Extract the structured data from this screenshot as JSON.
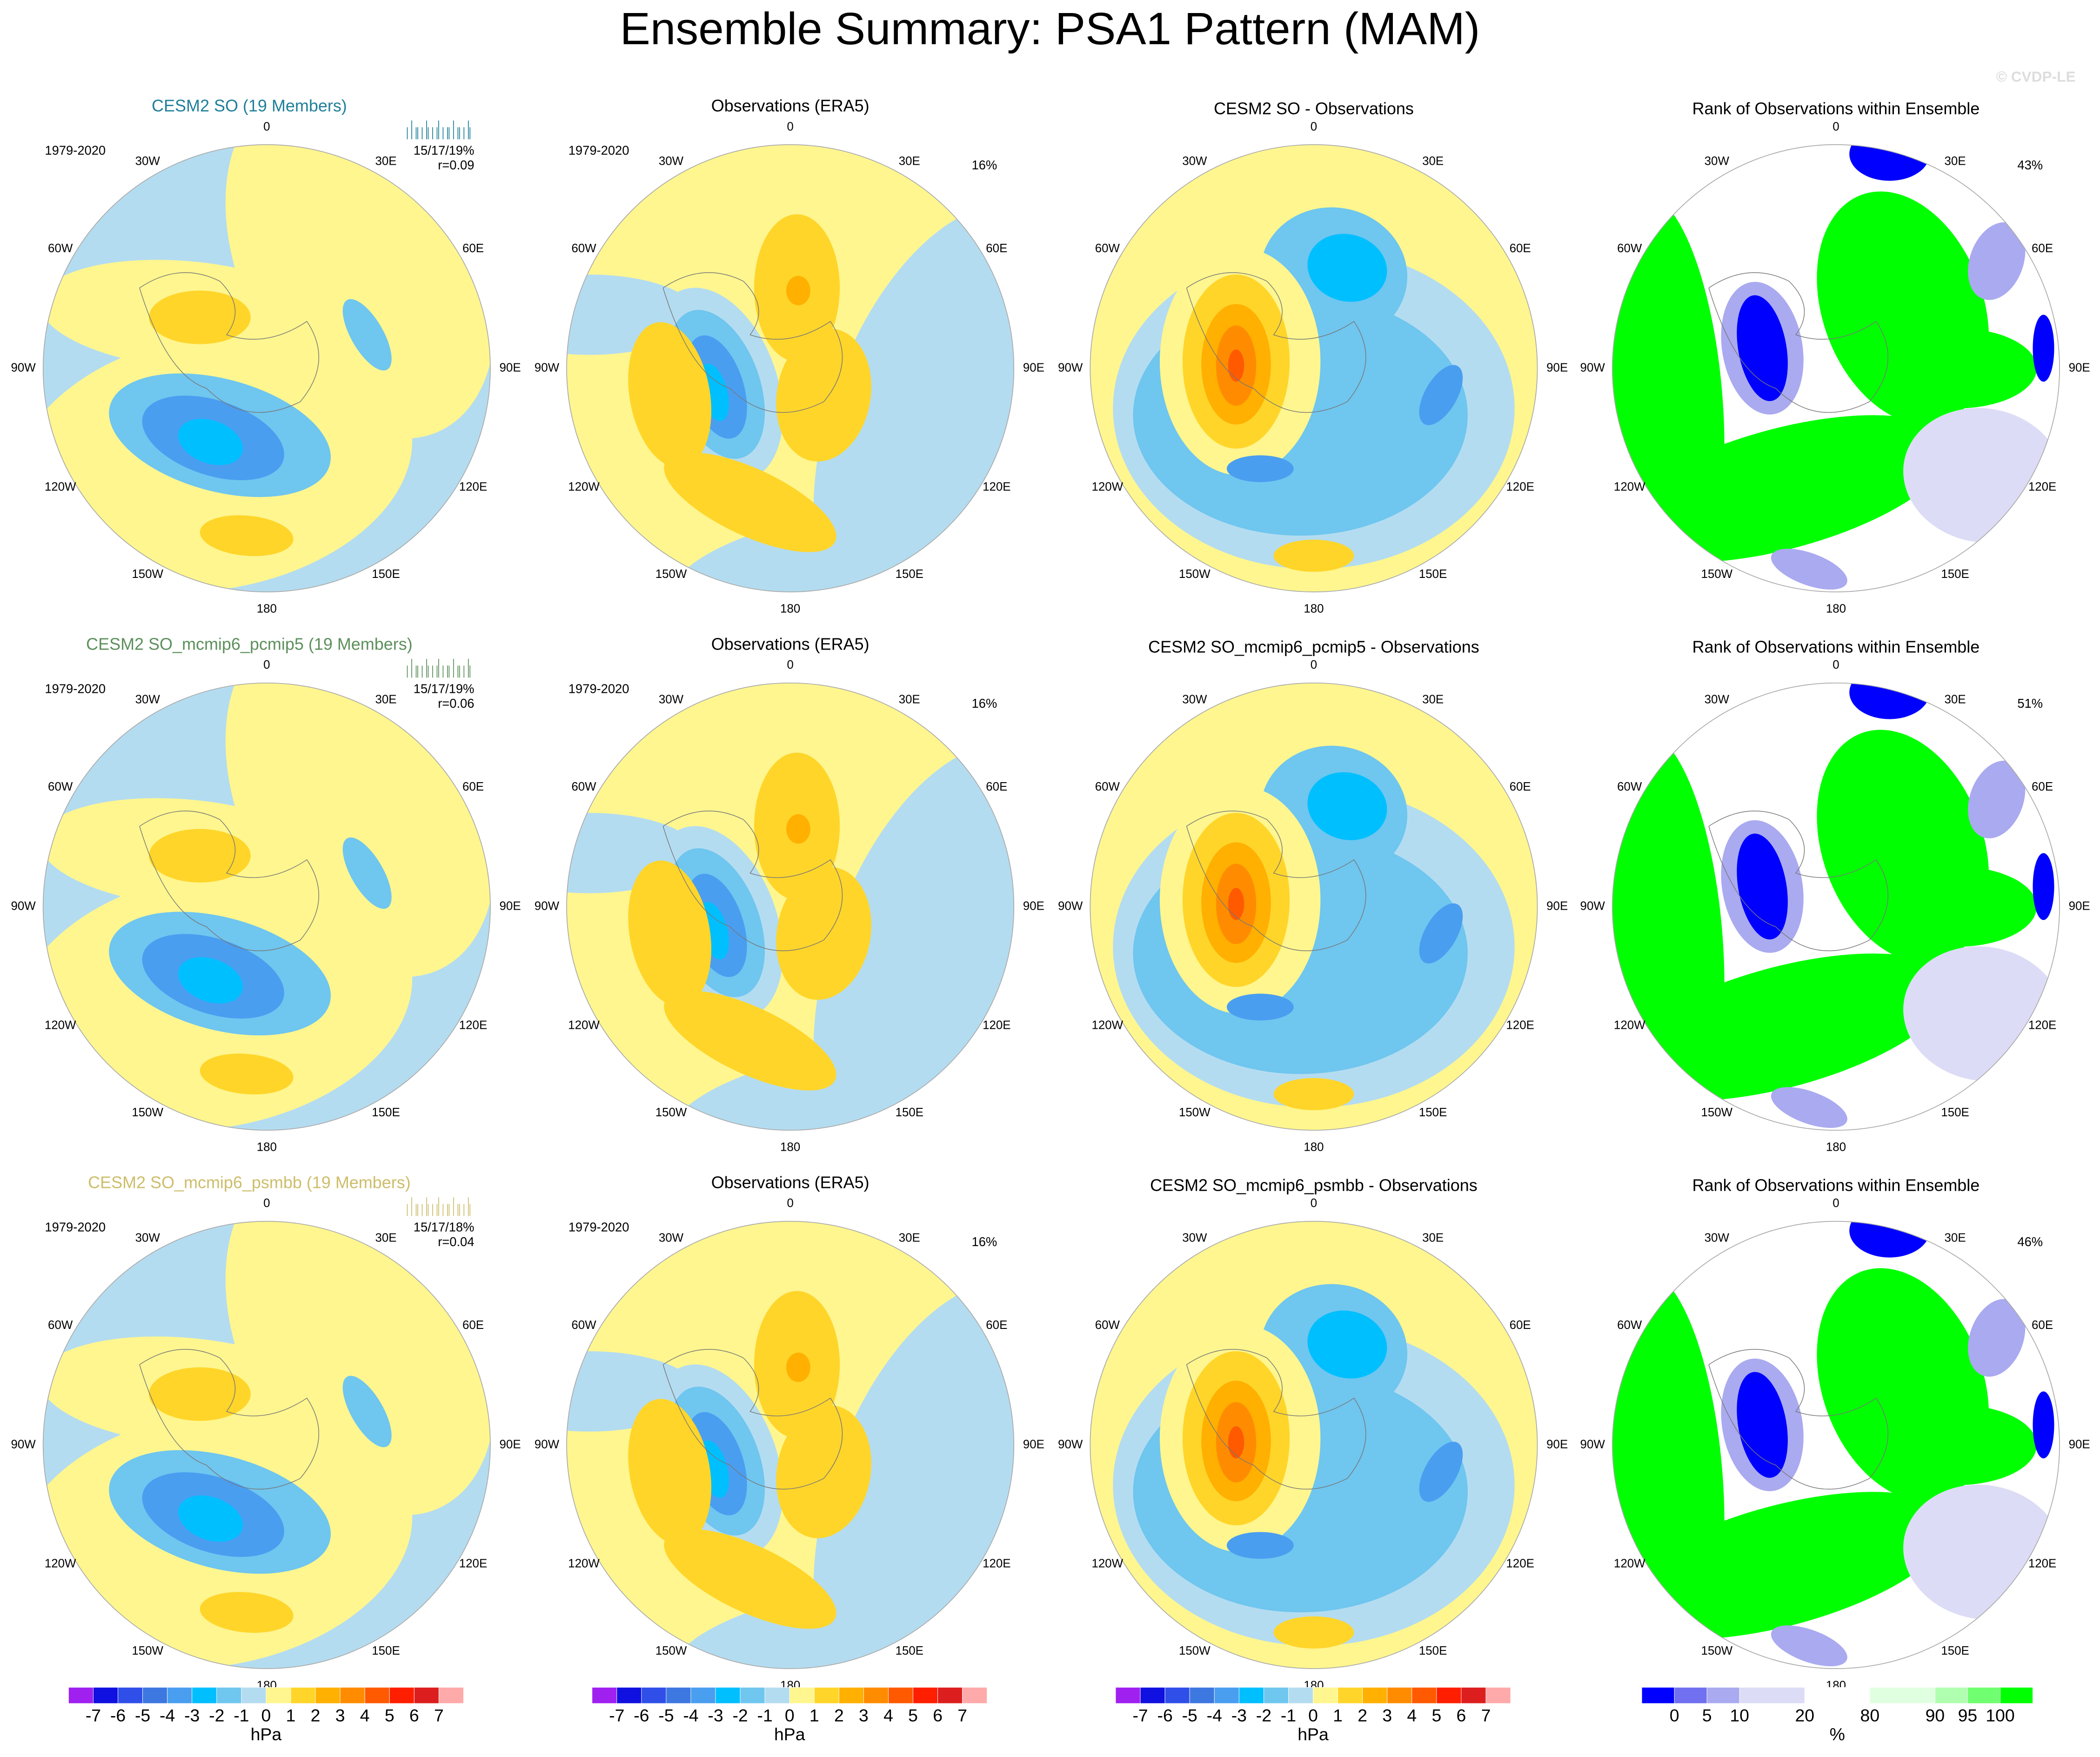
{
  "title": "Ensemble Summary: PSA1 Pattern (MAM)",
  "watermark": "© CVDP-LE",
  "rows": [
    {
      "ensemble": {
        "title": "CESM2 SO (19 Members)",
        "title_color": "#1f7f9a",
        "period": "1979-2020",
        "stats": "15/17/19%",
        "r": "r=0.09"
      },
      "obs": {
        "title": "Observations (ERA5)",
        "period": "1979-2020",
        "pct": "16%"
      },
      "diff": {
        "title": "CESM2 SO - Observations"
      },
      "rank": {
        "title": "Rank of Observations within Ensemble",
        "pct": "43%"
      }
    },
    {
      "ensemble": {
        "title": "CESM2 SO_mcmip6_pcmip5 (19 Members)",
        "title_color": "#5c8f5c",
        "period": "1979-2020",
        "stats": "15/17/19%",
        "r": "r=0.06"
      },
      "obs": {
        "title": "Observations (ERA5)",
        "period": "1979-2020",
        "pct": "16%"
      },
      "diff": {
        "title": "CESM2 SO_mcmip6_pcmip5 - Observations"
      },
      "rank": {
        "title": "Rank of Observations within Ensemble",
        "pct": "51%"
      }
    },
    {
      "ensemble": {
        "title": "CESM2 SO_mcmip6_psmbb (19 Members)",
        "title_color": "#cdbd6a",
        "period": "1979-2020",
        "stats": "15/17/18%",
        "r": "r=0.04"
      },
      "obs": {
        "title": "Observations (ERA5)",
        "period": "1979-2020",
        "pct": "16%"
      },
      "diff": {
        "title": "CESM2 SO_mcmip6_psmbb - Observations"
      },
      "rank": {
        "title": "Rank of Observations within Ensemble",
        "pct": "46%"
      }
    }
  ],
  "lon_labels": [
    "0",
    "30E",
    "60E",
    "90E",
    "120E",
    "150E",
    "180",
    "150W",
    "120W",
    "90W",
    "60W",
    "30W"
  ],
  "pressure_colorbar": {
    "ticks": [
      -7,
      -6,
      -5,
      -4,
      -3,
      -2,
      -1,
      0,
      1,
      2,
      3,
      4,
      5,
      6,
      7
    ],
    "unit": "hPa",
    "colors": [
      "#a020f0",
      "#1010e0",
      "#2f4fe8",
      "#3d78e0",
      "#4a9ef0",
      "#00bfff",
      "#6fc6ef",
      "#b4dcf0",
      "#fff68f",
      "#ffd52a",
      "#ffb000",
      "#ff8c00",
      "#ff5a00",
      "#ff1e00",
      "#dd1e1e",
      "#ffaaaa"
    ]
  },
  "rank_colorbar": {
    "ticks": [
      0,
      5,
      10,
      20,
      80,
      90,
      95,
      100
    ],
    "unit": "%",
    "colors": [
      "#0000ff",
      "#7070f0",
      "#aaaaf0",
      "#dcdcf6",
      "#ffffff",
      "#e0ffe0",
      "#b0ffb0",
      "#70ff70",
      "#00ff00"
    ]
  }
}
